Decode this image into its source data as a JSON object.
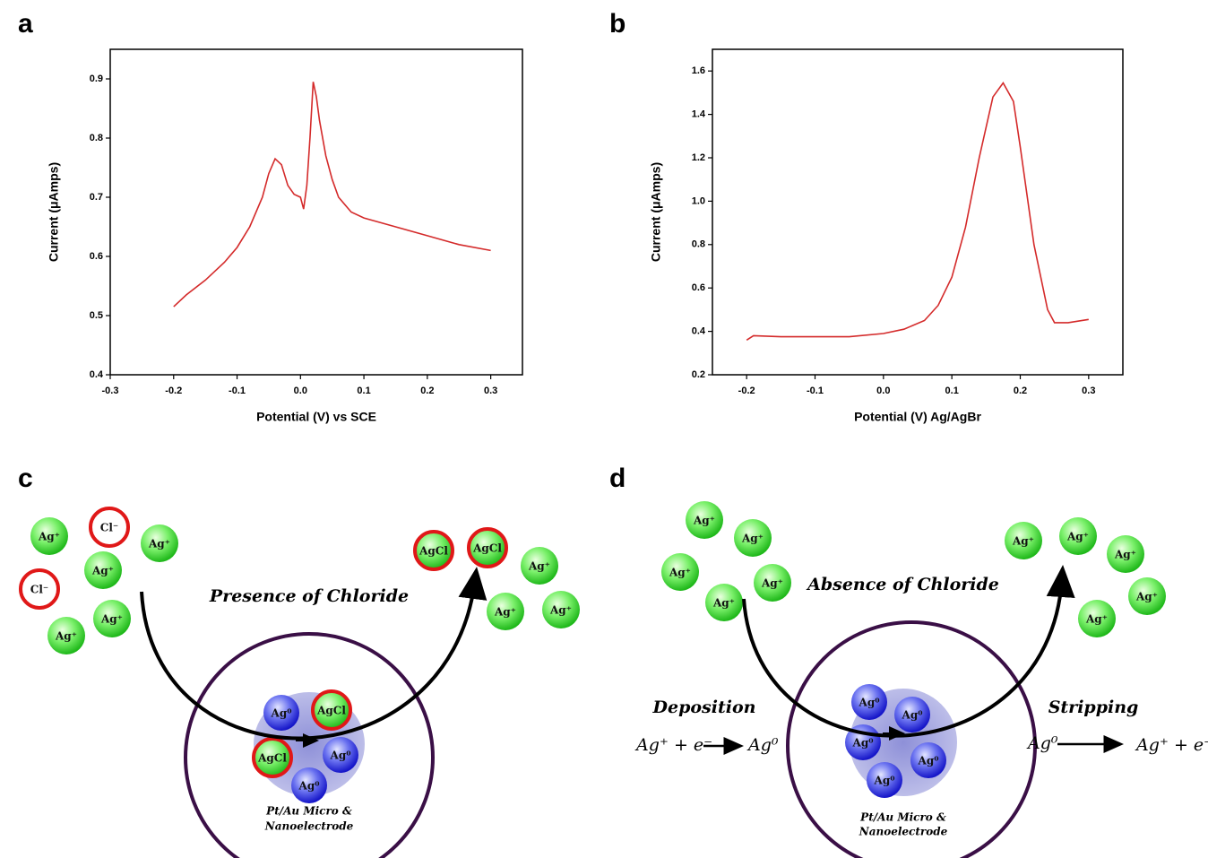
{
  "chart_data": [
    {
      "type": "line",
      "label": "a",
      "xlabel": "Potential (V) vs SCE",
      "ylabel": "Current (μAmps)",
      "color": "#d42a2a",
      "x": [
        -0.2,
        -0.18,
        -0.15,
        -0.12,
        -0.1,
        -0.08,
        -0.06,
        -0.05,
        -0.04,
        -0.03,
        -0.02,
        -0.01,
        0.0,
        0.005,
        0.01,
        0.015,
        0.02,
        0.025,
        0.03,
        0.04,
        0.05,
        0.06,
        0.08,
        0.1,
        0.15,
        0.2,
        0.25,
        0.3
      ],
      "values": [
        0.515,
        0.535,
        0.56,
        0.59,
        0.615,
        0.65,
        0.7,
        0.74,
        0.765,
        0.755,
        0.72,
        0.705,
        0.7,
        0.68,
        0.72,
        0.8,
        0.895,
        0.87,
        0.83,
        0.77,
        0.73,
        0.7,
        0.675,
        0.665,
        0.65,
        0.635,
        0.62,
        0.61
      ],
      "xlim": [
        -0.3,
        0.35
      ],
      "ylim": [
        0.4,
        0.95
      ],
      "xticks": [
        -0.3,
        -0.2,
        -0.1,
        {
          "value": 0,
          "label": "0.0"
        },
        0.1,
        0.2,
        0.3
      ],
      "yticks": [
        0.4,
        0.5,
        0.6,
        0.7,
        0.8,
        0.9
      ]
    },
    {
      "type": "line",
      "label": "b",
      "xlabel": "Potential (V) Ag/AgBr",
      "ylabel": "Current (μAmps)",
      "color": "#d42a2a",
      "x": [
        -0.2,
        -0.19,
        -0.15,
        -0.1,
        -0.05,
        0.0,
        0.03,
        0.06,
        0.08,
        0.1,
        0.12,
        0.14,
        0.16,
        0.175,
        0.19,
        0.2,
        0.22,
        0.24,
        0.25,
        0.27,
        0.3
      ],
      "values": [
        0.36,
        0.38,
        0.375,
        0.375,
        0.375,
        0.39,
        0.41,
        0.45,
        0.52,
        0.65,
        0.88,
        1.2,
        1.48,
        1.545,
        1.46,
        1.25,
        0.8,
        0.5,
        0.44,
        0.44,
        0.455
      ],
      "xlim": [
        -0.25,
        0.35
      ],
      "ylim": [
        0.2,
        1.7
      ],
      "xticks": [
        -0.2,
        -0.1,
        {
          "value": 0,
          "label": "0.0"
        },
        0.1,
        0.2,
        0.3
      ],
      "yticks": [
        0.2,
        0.4,
        0.6,
        0.8,
        {
          "value": 1,
          "label": "1.0"
        },
        1.2,
        1.4,
        1.6
      ]
    }
  ],
  "diagrams": [
    {
      "label": "c",
      "title": "Presence of Chloride",
      "particles": [
        "Ag⁺",
        "Cl⁻",
        "Ag⁺",
        "Ag⁺",
        "Cl⁻",
        "Ag⁺",
        "Ag⁺",
        "AgCl",
        "AgCl",
        "Ag⁺",
        "Ag⁺",
        "Ag⁺",
        "Ag⁰",
        "AgCl",
        "AgCl",
        "Ag⁰",
        "Ag⁰"
      ],
      "electrode": [
        "Pt/Au Micro &",
        "Nanoelectrode"
      ]
    },
    {
      "label": "d",
      "title": "Absence of Chloride",
      "particles": [
        "Ag⁺",
        "Ag⁺",
        "Ag⁺",
        "Ag⁺",
        "Ag⁺",
        "Ag⁺",
        "Ag⁺",
        "Ag⁺",
        "Ag⁺",
        "Ag⁺",
        "Ag⁰",
        "Ag⁰",
        "Ag⁰",
        "Ag⁰",
        "Ag⁰"
      ],
      "electrode": [
        "Pt/Au Micro &",
        "Nanoelectrode"
      ],
      "deposition": {
        "title": "Deposition",
        "reactant": "Ag⁺ + e⁻",
        "product": "Ag⁰"
      },
      "stripping": {
        "title": "Stripping",
        "reactant": "Ag⁰",
        "product": "Ag⁺ + e⁻"
      }
    }
  ]
}
